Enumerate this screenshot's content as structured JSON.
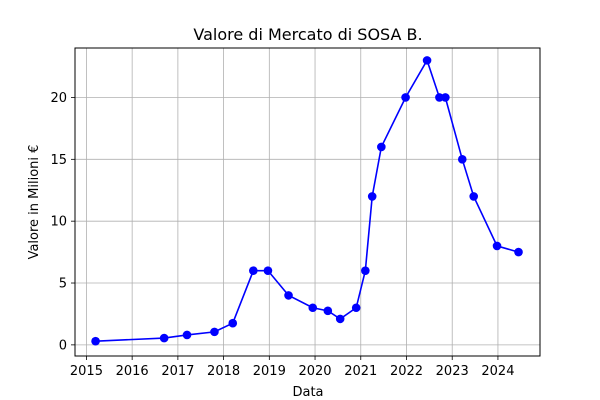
{
  "chart_data": {
    "type": "line",
    "title": "Valore di Mercato di SOSA B.",
    "xlabel": "Data",
    "ylabel": "Valore in Milioni €",
    "xlim": [
      2014.75,
      2024.92
    ],
    "ylim": [
      -0.9,
      24.0
    ],
    "xticks": [
      2015,
      2016,
      2017,
      2018,
      2019,
      2020,
      2021,
      2022,
      2023,
      2024
    ],
    "yticks": [
      0,
      5,
      10,
      15,
      20
    ],
    "grid": true,
    "line_color": "#0000ff",
    "series": [
      {
        "x": [
          2015.2,
          2016.7,
          2017.2,
          2017.8,
          2018.2,
          2018.65,
          2018.97,
          2019.42,
          2019.95,
          2020.28,
          2020.55,
          2020.9,
          2021.1,
          2021.25,
          2021.45,
          2021.98,
          2022.45,
          2022.72,
          2022.85,
          2023.22,
          2023.47,
          2023.98,
          2024.45
        ],
        "y": [
          0.3,
          0.55,
          0.8,
          1.05,
          1.75,
          6.0,
          6.0,
          4.0,
          3.0,
          2.75,
          2.1,
          3.0,
          6.0,
          12.0,
          16.0,
          20.0,
          23.0,
          20.0,
          20.0,
          15.0,
          12.0,
          8.0,
          7.5
        ]
      }
    ]
  }
}
